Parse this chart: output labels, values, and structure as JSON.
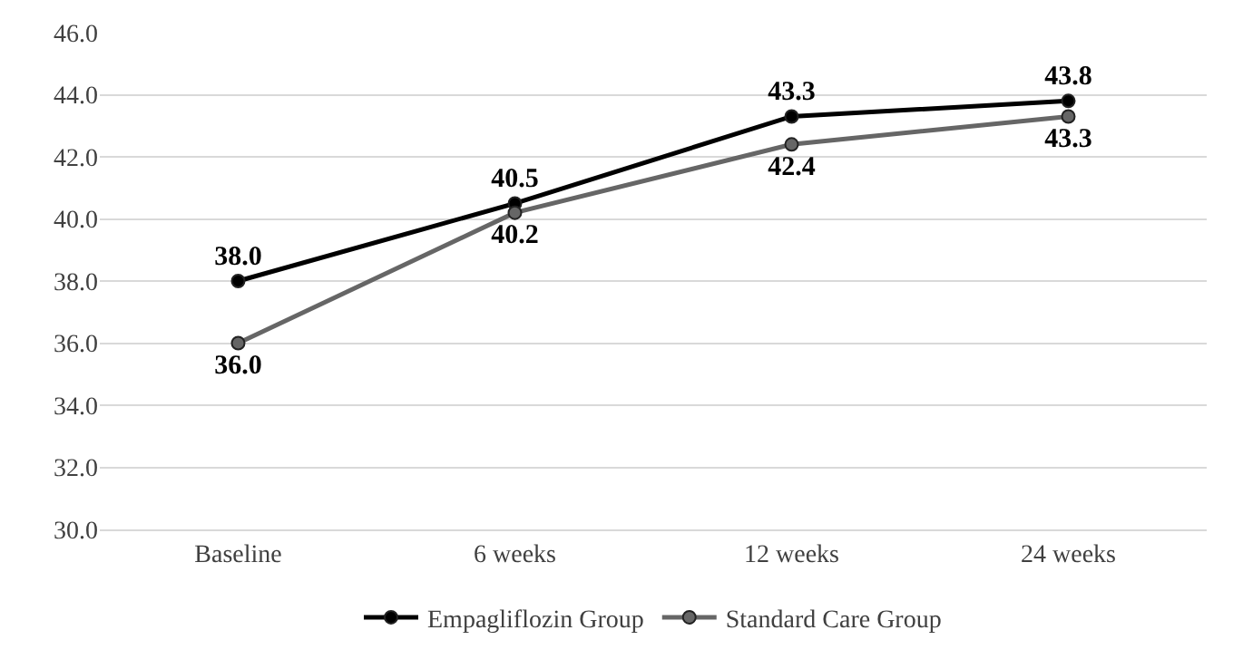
{
  "chart_data": {
    "type": "line",
    "categories": [
      "Baseline",
      "6 weeks",
      "12 weeks",
      "24 weeks"
    ],
    "series": [
      {
        "name": "Empagliflozin Group",
        "color": "#000000",
        "values": [
          38.0,
          40.5,
          43.3,
          43.8
        ],
        "value_labels": [
          "38.0",
          "40.5",
          "43.3",
          "43.8"
        ]
      },
      {
        "name": "Standard Care Group",
        "color": "#666666",
        "values": [
          36.0,
          40.2,
          42.4,
          43.3
        ],
        "value_labels": [
          "36.0",
          "40.2",
          "42.4",
          "43.3"
        ]
      }
    ],
    "ylim": [
      30,
      46
    ],
    "yticks": [
      {
        "value": 30,
        "label": "30.0"
      },
      {
        "value": 32,
        "label": "32.0"
      },
      {
        "value": 34,
        "label": "34.0"
      },
      {
        "value": 36,
        "label": "36.0"
      },
      {
        "value": 38,
        "label": "38.0"
      },
      {
        "value": 40,
        "label": "40.0"
      },
      {
        "value": 42,
        "label": "42.0"
      },
      {
        "value": 44,
        "label": "44.0"
      },
      {
        "value": 46,
        "label": "46.0"
      }
    ],
    "grid": "y",
    "legend": "bottom",
    "marker": "circle",
    "line_style": "solid"
  }
}
